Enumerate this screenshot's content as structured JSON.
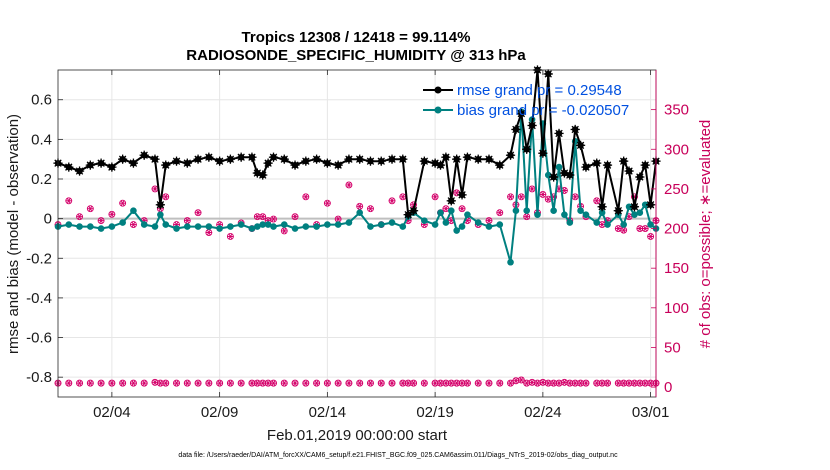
{
  "chart_data": {
    "type": "line",
    "title_line1": "Tropics 12308 / 12418 = 99.114%",
    "title_line2": "RADIOSONDE_SPECIFIC_HUMIDITY @ 313 hPa",
    "xlabel": "Feb.01,2019 00:00:00 start",
    "ylabel_left": "rmse and bias (model - observation)",
    "ylabel_right": "# of obs: o=possible; ∗=evaluated",
    "footnote": "data file: /Users/raeder/DAI/ATM_forcXX/CAM6_setup/f.e21.FHIST_BGC.f09_025.CAM6assim.011/Diags_NTrS_2019-02/obs_diag_output.nc",
    "xlim": [
      1.5,
      29.25
    ],
    "ylim_left": [
      -0.9,
      0.75
    ],
    "ylim_right": [
      -12.5,
      400
    ],
    "x_ticks": [
      {
        "value": 4,
        "label": "02/04"
      },
      {
        "value": 9,
        "label": "02/09"
      },
      {
        "value": 14,
        "label": "02/14"
      },
      {
        "value": 19,
        "label": "02/19"
      },
      {
        "value": 24,
        "label": "02/24"
      },
      {
        "value": 29,
        "label": "03/01"
      }
    ],
    "y_ticks_left": [
      {
        "value": 0.6,
        "label": "0.6"
      },
      {
        "value": 0.4,
        "label": "0.4"
      },
      {
        "value": 0.2,
        "label": "0.2"
      },
      {
        "value": 0,
        "label": "0"
      },
      {
        "value": -0.2,
        "label": "-0.2"
      },
      {
        "value": -0.4,
        "label": "-0.4"
      },
      {
        "value": -0.6,
        "label": "-0.6"
      },
      {
        "value": -0.8,
        "label": "-0.8"
      }
    ],
    "y_ticks_right": [
      {
        "value": 350,
        "label": "350"
      },
      {
        "value": 300,
        "label": "300"
      },
      {
        "value": 250,
        "label": "250"
      },
      {
        "value": 200,
        "label": "200"
      },
      {
        "value": 150,
        "label": "150"
      },
      {
        "value": 100,
        "label": "100"
      },
      {
        "value": 50,
        "label": "50"
      },
      {
        "value": 0,
        "label": "0"
      }
    ],
    "legend": [
      {
        "name": "rmse grand pr = 0.29548",
        "color": "#000000"
      },
      {
        "name": "bias grand pr = -0.020507",
        "color": "#008080"
      }
    ],
    "colors": {
      "rmse": "#000000",
      "bias": "#008080",
      "obs": "#d4006a",
      "zero_line": "#bfbfbf",
      "legend_text": "#0050e0"
    },
    "x": [
      1.5,
      2.0,
      2.5,
      3.0,
      3.5,
      4.0,
      4.5,
      5.0,
      5.5,
      6.0,
      6.25,
      6.5,
      7.0,
      7.5,
      8.0,
      8.5,
      9.0,
      9.5,
      10.0,
      10.5,
      10.75,
      11.0,
      11.25,
      11.5,
      12.0,
      12.5,
      13.0,
      13.5,
      14.0,
      14.5,
      15.0,
      15.5,
      16.0,
      16.5,
      17.0,
      17.5,
      17.75,
      18.0,
      18.5,
      19.0,
      19.25,
      19.5,
      19.75,
      20.0,
      20.25,
      20.5,
      21.0,
      21.5,
      22.0,
      22.5,
      22.75,
      23.0,
      23.25,
      23.5,
      23.75,
      24.0,
      24.25,
      24.5,
      24.75,
      25.0,
      25.25,
      25.5,
      25.75,
      26.0,
      26.5,
      26.75,
      27.0,
      27.5,
      27.75,
      28.0,
      28.25,
      28.5,
      28.75,
      29.0,
      29.25
    ],
    "rmse": [
      0.28,
      0.26,
      0.24,
      0.27,
      0.28,
      0.26,
      0.3,
      0.28,
      0.32,
      0.3,
      0.07,
      0.27,
      0.29,
      0.28,
      0.3,
      0.31,
      0.29,
      0.3,
      0.31,
      0.31,
      0.23,
      0.22,
      0.28,
      0.31,
      0.3,
      0.27,
      0.29,
      0.3,
      0.28,
      0.27,
      0.3,
      0.3,
      0.29,
      0.29,
      0.3,
      0.3,
      0.02,
      0.04,
      0.29,
      0.28,
      0.27,
      0.31,
      0.09,
      0.3,
      0.12,
      0.31,
      0.3,
      0.3,
      0.27,
      0.32,
      0.45,
      0.53,
      0.35,
      0.47,
      0.75,
      0.33,
      0.73,
      0.21,
      0.43,
      0.23,
      0.22,
      0.45,
      0.37,
      0.26,
      0.28,
      0.06,
      0.27,
      0.04,
      0.29,
      0.24,
      0.06,
      0.21,
      0.27,
      0.07,
      0.29
    ],
    "bias": [
      -0.04,
      -0.03,
      -0.04,
      -0.04,
      -0.05,
      -0.04,
      -0.02,
      0.04,
      -0.03,
      -0.04,
      0.02,
      -0.03,
      -0.05,
      -0.04,
      -0.04,
      -0.04,
      -0.05,
      -0.04,
      -0.03,
      -0.05,
      -0.04,
      -0.03,
      -0.03,
      -0.04,
      -0.03,
      -0.05,
      -0.04,
      -0.04,
      -0.03,
      -0.03,
      -0.02,
      0.03,
      -0.04,
      -0.03,
      -0.02,
      -0.04,
      0.01,
      0.03,
      -0.01,
      -0.03,
      0.03,
      -0.02,
      0.04,
      -0.06,
      -0.04,
      0.02,
      -0.02,
      -0.04,
      -0.03,
      -0.22,
      0.04,
      0.54,
      0.04,
      0.5,
      0.02,
      0.48,
      0.22,
      0.04,
      0.26,
      0.02,
      -0.02,
      0.39,
      0.04,
      0.02,
      -0.02,
      0.03,
      -0.03,
      0.02,
      -0.03,
      0.06,
      0.02,
      0.03,
      0.07,
      -0.03,
      -0.05
    ],
    "obs_possible": [
      5,
      5,
      5,
      5,
      5,
      5,
      5,
      5,
      5,
      6,
      5,
      5,
      5,
      5,
      5,
      5,
      5,
      5,
      5,
      5,
      5,
      5,
      5,
      5,
      5,
      5,
      5,
      5,
      5,
      5,
      5,
      5,
      5,
      5,
      5,
      5,
      5,
      5,
      5,
      5,
      5,
      5,
      5,
      5,
      5,
      5,
      5,
      5,
      5,
      5,
      8,
      9,
      5,
      6,
      5,
      6,
      5,
      5,
      5,
      6,
      5,
      5,
      5,
      5,
      5,
      5,
      5,
      5,
      5,
      5,
      5,
      5,
      5,
      5,
      5
    ],
    "obs_evaluated": [
      205,
      235,
      215,
      225,
      210,
      218,
      232,
      205,
      210,
      250,
      225,
      240,
      205,
      210,
      220,
      195,
      205,
      190,
      207,
      200,
      215,
      215,
      210,
      212,
      197,
      215,
      240,
      205,
      232,
      212,
      255,
      228,
      225,
      205,
      235,
      240,
      210,
      230,
      205,
      240,
      220,
      225,
      210,
      245,
      225,
      210,
      205,
      210,
      220,
      240,
      230,
      240,
      215,
      250,
      220,
      243,
      237,
      240,
      250,
      248,
      210,
      240,
      228,
      215,
      235,
      205,
      210,
      200,
      198,
      215,
      240,
      200,
      200,
      190,
      210
    ]
  }
}
